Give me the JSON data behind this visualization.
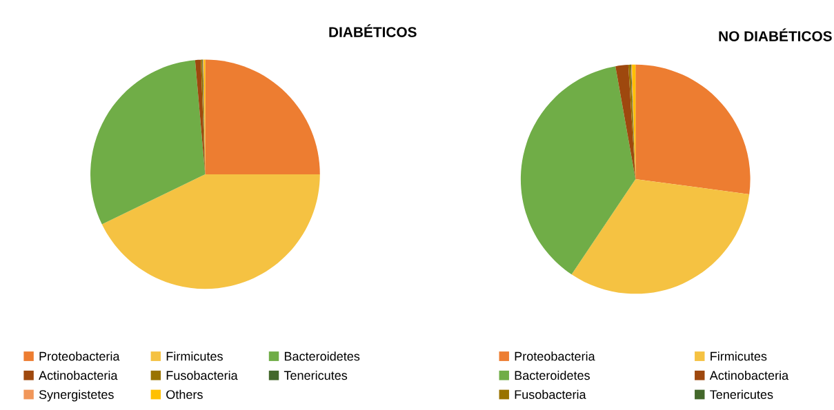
{
  "chart_data": [
    {
      "type": "pie",
      "title": "DIABÉTICOS",
      "categories": [
        "Proteobacteria",
        "Firmicutes",
        "Bacteroidetes",
        "Actinobacteria",
        "Fusobacteria",
        "Tenericutes",
        "Synergistetes",
        "Others"
      ],
      "values": [
        25.0,
        42.8,
        30.8,
        0.8,
        0.2,
        0.1,
        0.1,
        0.2
      ],
      "colors": [
        "#ed7d31",
        "#f5c242",
        "#70ad47",
        "#9e480e",
        "#997300",
        "#43682b",
        "#f1975a",
        "#ffc000"
      ],
      "legend": "bottom"
    },
    {
      "type": "pie",
      "title": "NO DIABÉTICOS",
      "categories": [
        "Proteobacteria",
        "Firmicutes",
        "Bacteroidetes",
        "Actinobacteria",
        "Fusobacteria",
        "Tenericutes",
        null,
        null
      ],
      "values": [
        27.1,
        32.3,
        37.8,
        1.8,
        0.3,
        0.1,
        0.1,
        0.5
      ],
      "colors": [
        "#ed7d31",
        "#f5c242",
        "#70ad47",
        "#9e480e",
        "#997300",
        "#43682b",
        "#f1975a",
        "#ffc000"
      ],
      "legend": "bottom"
    }
  ]
}
